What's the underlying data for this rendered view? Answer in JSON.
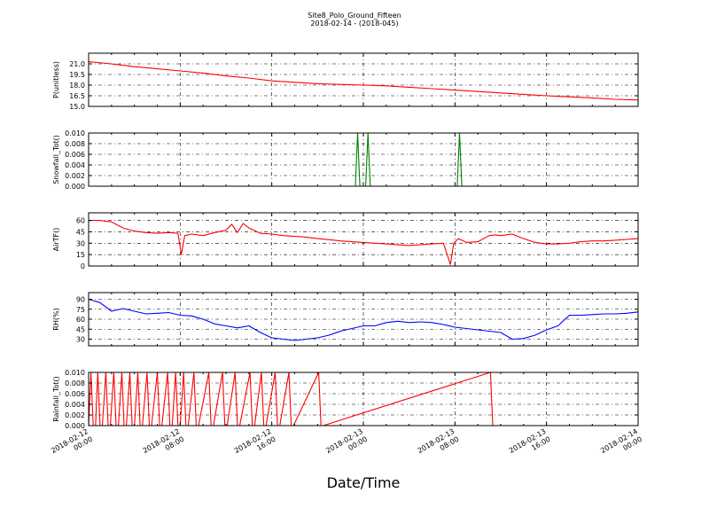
{
  "figure": {
    "title": "Site8_Polo_Ground_Fifteen",
    "subtitle": "2018-02-14 - (2018-045)",
    "xlabel": "Date/Time",
    "x_tick_labels": [
      [
        "2018-02-12",
        "00:00"
      ],
      [
        "2018-02-12",
        "08:00"
      ],
      [
        "2018-02-12",
        "16:00"
      ],
      [
        "2018-02-13",
        "00:00"
      ],
      [
        "2018-02-13",
        "08:00"
      ],
      [
        "2018-02-13",
        "16:00"
      ],
      [
        "2018-02-14",
        "00:00"
      ]
    ]
  },
  "chart_data": [
    {
      "type": "line",
      "ylabel": "P(unitless)",
      "color": "#ff0000",
      "ylim": [
        15.0,
        22.5
      ],
      "yticks": [
        15.0,
        16.5,
        18.0,
        19.5,
        21.0
      ],
      "ytick_labels": [
        "15.0",
        "16.5",
        "18.0",
        "19.5",
        "21.0"
      ],
      "x_hours": [
        0,
        2,
        4,
        6,
        8,
        10,
        12,
        14,
        16,
        18,
        20,
        22,
        24,
        26,
        28,
        30,
        32,
        34,
        36,
        38,
        40,
        42,
        44,
        46,
        48
      ],
      "values": [
        21.3,
        21.0,
        20.6,
        20.3,
        20.0,
        19.7,
        19.3,
        19.0,
        18.6,
        18.4,
        18.2,
        18.1,
        18.0,
        17.9,
        17.7,
        17.5,
        17.3,
        17.1,
        16.9,
        16.7,
        16.5,
        16.35,
        16.2,
        16.0,
        15.9
      ]
    },
    {
      "type": "line",
      "ylabel": "Snowfall_Tot()",
      "color": "#007f00",
      "ylim": [
        0.0,
        0.01
      ],
      "yticks": [
        0.0,
        0.002,
        0.004,
        0.006,
        0.008,
        0.01
      ],
      "ytick_labels": [
        "0.000",
        "0.002",
        "0.004",
        "0.006",
        "0.008",
        "0.010"
      ],
      "x_hours": [
        0,
        23.3,
        23.5,
        23.7,
        24.2,
        24.4,
        24.6,
        32.2,
        32.4,
        32.6,
        48
      ],
      "values": [
        0,
        0,
        0.01,
        0,
        0,
        0.01,
        0,
        0,
        0.01,
        0,
        0
      ]
    },
    {
      "type": "line",
      "ylabel": "AirTF()",
      "color": "#ff0000",
      "ylim": [
        0,
        70
      ],
      "yticks": [
        0,
        15,
        30,
        45,
        60
      ],
      "ytick_labels": [
        "0",
        "15",
        "30",
        "45",
        "60"
      ],
      "x_hours": [
        0,
        1,
        2,
        3,
        4,
        5,
        6,
        7,
        7.8,
        8.1,
        8.4,
        9,
        10,
        11,
        12,
        12.5,
        13,
        13.5,
        14,
        15,
        16,
        17,
        18,
        19,
        20,
        22,
        24,
        26,
        28,
        30,
        31,
        31.6,
        31.9,
        32.3,
        33,
        34,
        35,
        35.5,
        36,
        37,
        38,
        39,
        40,
        41,
        42,
        43,
        44,
        45,
        46,
        47,
        48
      ],
      "values": [
        60,
        60,
        58,
        50,
        46,
        44,
        43,
        44,
        43,
        15,
        40,
        42,
        40,
        44,
        47,
        55,
        44,
        56,
        50,
        43,
        42,
        40,
        39,
        38,
        36,
        33,
        31,
        29,
        27,
        29,
        30,
        2,
        30,
        36,
        31,
        32,
        40,
        41,
        40,
        42,
        36,
        31,
        29,
        29,
        30,
        32,
        33,
        33,
        34,
        35,
        36
      ]
    },
    {
      "type": "line",
      "ylabel": "RH(%)",
      "color": "#0000ff",
      "ylim": [
        20,
        100
      ],
      "yticks": [
        30,
        45,
        60,
        75,
        90
      ],
      "ytick_labels": [
        "30",
        "45",
        "60",
        "75",
        "90"
      ],
      "x_hours": [
        0,
        1,
        2,
        3,
        4,
        5,
        6,
        7,
        8,
        9,
        10,
        11,
        12,
        13,
        14,
        15,
        16,
        17,
        18,
        19,
        20,
        21,
        22,
        23,
        24,
        25,
        26,
        27,
        28,
        29,
        30,
        31,
        32,
        33,
        34,
        35,
        36,
        37,
        38,
        39,
        40,
        41,
        42,
        43,
        44,
        45,
        46,
        47,
        48
      ],
      "values": [
        90,
        85,
        72,
        76,
        72,
        68,
        69,
        70,
        66,
        65,
        60,
        53,
        50,
        47,
        50,
        40,
        32,
        30,
        28,
        30,
        32,
        36,
        42,
        46,
        50,
        50,
        55,
        57,
        55,
        56,
        55,
        52,
        48,
        46,
        44,
        42,
        40,
        30,
        31,
        36,
        44,
        50,
        66,
        66,
        67,
        68,
        68,
        69,
        71
      ]
    },
    {
      "type": "line",
      "ylabel": "Rainfall_Tot()",
      "color": "#ff0000",
      "ylim": [
        0.0,
        0.01
      ],
      "yticks": [
        0.0,
        0.002,
        0.004,
        0.006,
        0.008,
        0.01
      ],
      "ytick_labels": [
        "0.000",
        "0.002",
        "0.004",
        "0.006",
        "0.008",
        "0.010"
      ],
      "x_hours": [
        0,
        0.2,
        0.4,
        0.6,
        0.8,
        1.0,
        1.2,
        1.5,
        1.7,
        1.9,
        2.2,
        2.4,
        2.6,
        2.9,
        3.1,
        3.3,
        3.6,
        3.8,
        4.0,
        4.3,
        4.5,
        4.7,
        5.1,
        5.3,
        5.5,
        6.0,
        6.2,
        6.4,
        6.9,
        7.1,
        7.3,
        7.6,
        7.8,
        8.0,
        8.3,
        8.5,
        8.7,
        9.2,
        9.4,
        9.6,
        10.5,
        10.7,
        10.9,
        11.7,
        11.9,
        12.1,
        12.8,
        13.0,
        13.2,
        14.1,
        14.3,
        14.5,
        15.1,
        15.3,
        15.5,
        16.3,
        16.5,
        16.7,
        17.5,
        17.7,
        17.9,
        20.1,
        20.3,
        20.5,
        35.1,
        35.3,
        35.5,
        48
      ],
      "values": [
        0,
        0.01,
        0,
        0,
        0.01,
        0,
        0,
        0.01,
        0,
        0,
        0.01,
        0,
        0,
        0.01,
        0,
        0,
        0.01,
        0,
        0,
        0.01,
        0,
        0,
        0.01,
        0,
        0,
        0.01,
        0,
        0,
        0.01,
        0,
        0,
        0.01,
        0,
        0,
        0.01,
        0,
        0,
        0.01,
        0,
        0,
        0.01,
        0,
        0,
        0.01,
        0,
        0,
        0.01,
        0,
        0,
        0.01,
        0,
        0,
        0.01,
        0,
        0,
        0.01,
        0,
        0,
        0.01,
        0,
        0,
        0.01,
        0,
        0,
        0.01,
        0,
        0,
        0
      ]
    }
  ]
}
